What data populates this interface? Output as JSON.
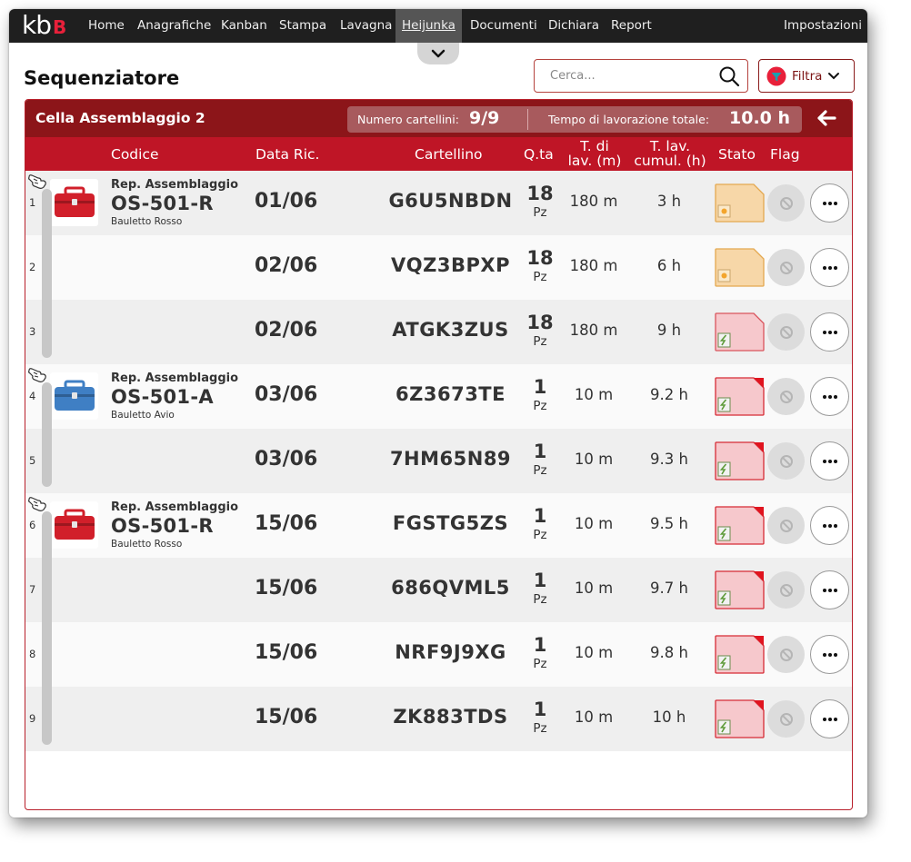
{
  "nav": {
    "logo_main": "kb",
    "logo_accent": "B",
    "items": [
      "Home",
      "Anagrafiche",
      "Kanban",
      "Stampa",
      "Lavagna",
      "Heijunka",
      "Documenti",
      "Dichiara",
      "Report"
    ],
    "active": "Heijunka",
    "settings": "Impostazioni"
  },
  "page": {
    "title": "Sequenziatore",
    "search_placeholder": "Cerca...",
    "filter_label": "Filtra"
  },
  "cell": {
    "name": "Cella Assemblaggio 2",
    "count_label": "Numero cartellini:",
    "count_value": "9/9",
    "time_label": "Tempo di lavorazione totale:",
    "time_value": "10.0 h"
  },
  "columns": {
    "code": "Codice",
    "date": "Data Ric.",
    "card": "Cartellino",
    "qty": "Q.ta",
    "tlav_1": "T. di",
    "tlav_2": "lav. (m)",
    "tcum_1": "T. lav.",
    "tcum_2": "cumul. (h)",
    "status": "Stato",
    "flag": "Flag"
  },
  "rows": [
    {
      "num": "1",
      "rep": "Rep. Assemblaggio",
      "code": "OS-501-R",
      "desc": "Bauletto Rosso",
      "product_color": "#d11f2a",
      "date": "01/06",
      "card": "G6U5NBDN",
      "qty": "18",
      "unit": "Pz",
      "tlav": "180 m",
      "tcum": "3 h",
      "status": "orange"
    },
    {
      "num": "2",
      "date": "02/06",
      "card": "VQZ3BPXP",
      "qty": "18",
      "unit": "Pz",
      "tlav": "180 m",
      "tcum": "6 h",
      "status": "orange"
    },
    {
      "num": "3",
      "date": "02/06",
      "card": "ATGK3ZUS",
      "qty": "18",
      "unit": "Pz",
      "tlav": "180 m",
      "tcum": "9 h",
      "status": "pink"
    },
    {
      "num": "4",
      "rep": "Rep. Assemblaggio",
      "code": "OS-501-A",
      "desc": "Bauletto Avio",
      "product_color": "#3f7fc4",
      "date": "03/06",
      "card": "6Z3673TE",
      "qty": "1",
      "unit": "Pz",
      "tlav": "10 m",
      "tcum": "9.2 h",
      "status": "red"
    },
    {
      "num": "5",
      "date": "03/06",
      "card": "7HM65N89",
      "qty": "1",
      "unit": "Pz",
      "tlav": "10 m",
      "tcum": "9.3 h",
      "status": "red"
    },
    {
      "num": "6",
      "rep": "Rep. Assemblaggio",
      "code": "OS-501-R",
      "desc": "Bauletto Rosso",
      "product_color": "#d11f2a",
      "date": "15/06",
      "card": "FGSTG5ZS",
      "qty": "1",
      "unit": "Pz",
      "tlav": "10 m",
      "tcum": "9.5 h",
      "status": "red"
    },
    {
      "num": "7",
      "date": "15/06",
      "card": "686QVML5",
      "qty": "1",
      "unit": "Pz",
      "tlav": "10 m",
      "tcum": "9.7 h",
      "status": "red"
    },
    {
      "num": "8",
      "date": "15/06",
      "card": "NRF9J9XG",
      "qty": "1",
      "unit": "Pz",
      "tlav": "10 m",
      "tcum": "9.8 h",
      "status": "red"
    },
    {
      "num": "9",
      "date": "15/06",
      "card": "ZK883TDS",
      "qty": "1",
      "unit": "Pz",
      "tlav": "10 m",
      "tcum": "10 h",
      "status": "red"
    }
  ],
  "groups": [
    {
      "start": 0,
      "end": 2
    },
    {
      "start": 3,
      "end": 4
    },
    {
      "start": 5,
      "end": 8
    }
  ],
  "colors": {
    "header_dark": "#8c1519",
    "header_red": "#bf1526",
    "status_orange": "#f7d7a8",
    "status_pink": "#f6c8cc",
    "status_border_red": "#d62b35"
  }
}
